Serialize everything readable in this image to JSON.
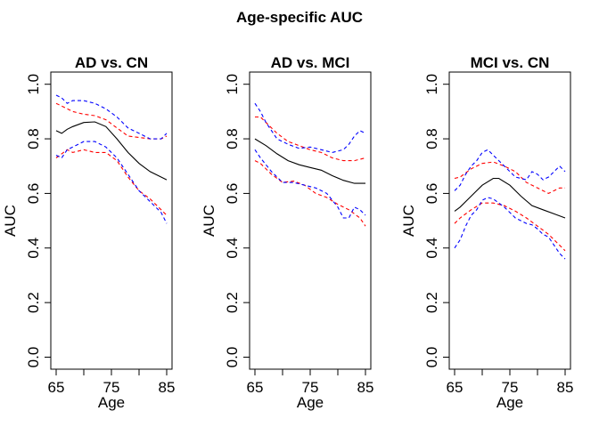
{
  "figure": {
    "title": "Age-specific AUC"
  },
  "chart_data": [
    {
      "type": "line",
      "title": "AD vs. CN",
      "xlabel": "Age",
      "ylabel": "AUC",
      "xlim": [
        65,
        85
      ],
      "ylim": [
        0,
        1
      ],
      "xticks": [
        65,
        75,
        85
      ],
      "yticks": [
        0.0,
        0.2,
        0.4,
        0.6,
        0.8,
        1.0
      ],
      "ytick_labels": [
        "0.0",
        "0.2",
        "0.4",
        "0.6",
        "0.8",
        "1.0"
      ],
      "series": [
        {
          "style": "solid",
          "color": "#000000",
          "x": [
            65,
            66,
            67,
            68,
            70,
            72,
            74,
            76,
            78,
            80,
            82,
            85
          ],
          "y": [
            0.83,
            0.82,
            0.835,
            0.845,
            0.86,
            0.862,
            0.845,
            0.8,
            0.75,
            0.71,
            0.68,
            0.65
          ]
        },
        {
          "style": "dashed",
          "color": "#ff0000",
          "x": [
            65,
            66,
            68,
            70,
            72,
            74,
            76,
            78,
            80,
            82,
            84,
            85
          ],
          "y": [
            0.93,
            0.92,
            0.9,
            0.89,
            0.885,
            0.87,
            0.84,
            0.81,
            0.805,
            0.8,
            0.8,
            0.81
          ]
        },
        {
          "style": "dashed",
          "color": "#ff0000",
          "x": [
            65,
            66,
            67,
            68,
            70,
            72,
            74,
            76,
            78,
            80,
            82,
            84,
            85
          ],
          "y": [
            0.73,
            0.745,
            0.76,
            0.75,
            0.76,
            0.75,
            0.75,
            0.72,
            0.66,
            0.61,
            0.58,
            0.54,
            0.52
          ]
        },
        {
          "style": "dashed",
          "color": "#0000ff",
          "x": [
            65,
            66,
            67,
            68,
            70,
            72,
            74,
            76,
            78,
            80,
            82,
            84,
            85
          ],
          "y": [
            0.96,
            0.95,
            0.93,
            0.94,
            0.94,
            0.93,
            0.91,
            0.88,
            0.84,
            0.82,
            0.8,
            0.8,
            0.82
          ]
        },
        {
          "style": "dashed",
          "color": "#0000ff",
          "x": [
            65,
            66,
            67,
            68,
            70,
            72,
            74,
            76,
            78,
            80,
            82,
            84,
            85
          ],
          "y": [
            0.74,
            0.73,
            0.76,
            0.77,
            0.79,
            0.79,
            0.77,
            0.73,
            0.67,
            0.61,
            0.57,
            0.53,
            0.49
          ]
        }
      ]
    },
    {
      "type": "line",
      "title": "AD vs. MCI",
      "xlabel": "Age",
      "ylabel": "AUC",
      "xlim": [
        65,
        85
      ],
      "ylim": [
        0,
        1
      ],
      "xticks": [
        65,
        75,
        85
      ],
      "yticks": [
        0.0,
        0.2,
        0.4,
        0.6,
        0.8,
        1.0
      ],
      "ytick_labels": [
        "0.0",
        "0.2",
        "0.4",
        "0.6",
        "0.8",
        "1.0"
      ],
      "series": [
        {
          "style": "solid",
          "color": "#000000",
          "x": [
            65,
            67,
            69,
            71,
            73,
            75,
            77,
            79,
            81,
            83,
            85
          ],
          "y": [
            0.8,
            0.775,
            0.745,
            0.72,
            0.705,
            0.695,
            0.685,
            0.665,
            0.648,
            0.637,
            0.637
          ]
        },
        {
          "style": "dashed",
          "color": "#ff0000",
          "x": [
            65,
            66,
            67,
            69,
            71,
            73,
            75,
            77,
            79,
            81,
            83,
            85
          ],
          "y": [
            0.88,
            0.88,
            0.86,
            0.82,
            0.79,
            0.775,
            0.76,
            0.75,
            0.73,
            0.72,
            0.72,
            0.73
          ]
        },
        {
          "style": "dashed",
          "color": "#ff0000",
          "x": [
            65,
            66,
            68,
            70,
            72,
            74,
            76,
            78,
            80,
            82,
            84,
            85
          ],
          "y": [
            0.72,
            0.71,
            0.67,
            0.64,
            0.645,
            0.63,
            0.6,
            0.585,
            0.56,
            0.54,
            0.51,
            0.48
          ]
        },
        {
          "style": "dashed",
          "color": "#0000ff",
          "x": [
            65,
            66,
            67,
            69,
            71,
            73,
            75,
            77,
            79,
            81,
            82,
            83,
            84,
            85
          ],
          "y": [
            0.93,
            0.9,
            0.86,
            0.8,
            0.78,
            0.765,
            0.77,
            0.76,
            0.75,
            0.76,
            0.78,
            0.81,
            0.83,
            0.82
          ]
        },
        {
          "style": "dashed",
          "color": "#0000ff",
          "x": [
            65,
            66,
            68,
            70,
            72,
            74,
            76,
            78,
            80,
            81,
            82,
            83,
            84,
            85
          ],
          "y": [
            0.76,
            0.73,
            0.68,
            0.64,
            0.64,
            0.63,
            0.62,
            0.6,
            0.55,
            0.51,
            0.51,
            0.55,
            0.54,
            0.52
          ]
        }
      ]
    },
    {
      "type": "line",
      "title": "MCI vs. CN",
      "xlabel": "Age",
      "ylabel": "AUC",
      "xlim": [
        65,
        85
      ],
      "ylim": [
        0,
        1
      ],
      "xticks": [
        65,
        75,
        85
      ],
      "yticks": [
        0.0,
        0.2,
        0.4,
        0.6,
        0.8,
        1.0
      ],
      "ytick_labels": [
        "0.0",
        "0.2",
        "0.4",
        "0.6",
        "0.8",
        "1.0"
      ],
      "series": [
        {
          "style": "solid",
          "color": "#000000",
          "x": [
            65,
            66,
            68,
            70,
            72,
            73,
            75,
            77,
            79,
            81,
            83,
            85
          ],
          "y": [
            0.535,
            0.55,
            0.59,
            0.63,
            0.655,
            0.655,
            0.63,
            0.59,
            0.555,
            0.54,
            0.525,
            0.51
          ]
        },
        {
          "style": "dashed",
          "color": "#ff0000",
          "x": [
            65,
            66,
            68,
            70,
            72,
            74,
            76,
            78,
            80,
            82,
            84,
            85
          ],
          "y": [
            0.655,
            0.66,
            0.69,
            0.71,
            0.715,
            0.7,
            0.68,
            0.64,
            0.62,
            0.6,
            0.62,
            0.62
          ]
        },
        {
          "style": "dashed",
          "color": "#ff0000",
          "x": [
            65,
            66,
            68,
            70,
            72,
            74,
            76,
            78,
            80,
            82,
            84,
            85
          ],
          "y": [
            0.49,
            0.51,
            0.54,
            0.565,
            0.565,
            0.555,
            0.535,
            0.51,
            0.48,
            0.45,
            0.41,
            0.39
          ]
        },
        {
          "style": "dashed",
          "color": "#0000ff",
          "x": [
            65,
            66,
            67,
            68,
            69,
            70,
            71,
            72,
            73,
            74,
            76,
            78,
            79,
            80,
            81,
            82,
            83,
            84,
            85
          ],
          "y": [
            0.61,
            0.63,
            0.67,
            0.7,
            0.72,
            0.75,
            0.76,
            0.74,
            0.72,
            0.7,
            0.66,
            0.65,
            0.68,
            0.67,
            0.65,
            0.66,
            0.68,
            0.7,
            0.68
          ]
        },
        {
          "style": "dashed",
          "color": "#0000ff",
          "x": [
            65,
            66,
            67,
            68,
            69,
            70,
            71,
            72,
            73,
            74,
            75,
            76,
            77,
            78,
            79,
            80,
            81,
            82,
            83,
            84,
            85
          ],
          "y": [
            0.4,
            0.43,
            0.48,
            0.52,
            0.54,
            0.575,
            0.585,
            0.58,
            0.565,
            0.55,
            0.53,
            0.51,
            0.5,
            0.49,
            0.485,
            0.47,
            0.45,
            0.44,
            0.41,
            0.38,
            0.36
          ]
        }
      ]
    }
  ]
}
